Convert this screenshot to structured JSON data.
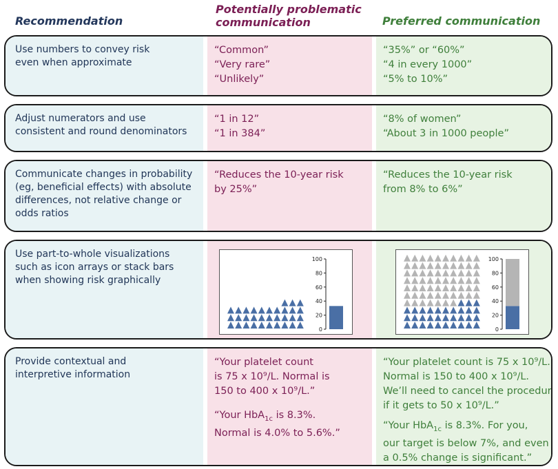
{
  "headers": {
    "recommendation": "Recommendation",
    "problematic": [
      "Potentially problematic",
      "communication"
    ],
    "preferred": "Preferred communication"
  },
  "rows": [
    {
      "recommendation": [
        "Use numbers to convey risk",
        "even when approximate"
      ],
      "problematic": [
        "“Common”",
        "“Very rare”",
        "“Unlikely”"
      ],
      "preferred": [
        "“35%” or “60%”",
        "“4 in every 1000”",
        "“5% to 10%”"
      ]
    },
    {
      "recommendation": [
        "Adjust numerators and use",
        "consistent and round denominators"
      ],
      "problematic": [
        "“1 in 12”",
        "“1 in 384”"
      ],
      "preferred": [
        "“8% of women”",
        "“About 3 in 1000 people”"
      ]
    },
    {
      "recommendation": [
        "Communicate changes in probability",
        "(eg, beneficial effects) with absolute",
        "differences, not relative change or",
        "odds ratios"
      ],
      "problematic": [
        "“Reduces the 10-year risk",
        "by 25%”"
      ],
      "preferred": [
        "“Reduces the 10-year risk",
        "from 8% to 6%”"
      ]
    },
    {
      "recommendation": [
        "Use part-to-whole visualizations",
        "such as icon arrays or stack bars",
        "when showing risk graphically"
      ]
    },
    {
      "recommendation": [
        "Provide contextual and",
        "interpretive information"
      ],
      "problematic_1": [
        "“Your platelet count",
        "is 75 x 10⁹/L. Normal is",
        "150 to 400 x 10⁹/L.”"
      ],
      "problematic_2": {
        "pre": "“Your HbA",
        "sub": "1c",
        "post": " is 8.3%.",
        "line2": "Normal is 4.0% to 5.6%.”"
      },
      "preferred_1": [
        "“Your platelet count is 75 x 10⁹/L.",
        "Normal is 150 to 400 x 10⁹/L.",
        "We’ll need to cancel the procedure",
        "if it gets to 50 x 10⁹/L.”"
      ],
      "preferred_2": {
        "pre": "“Your HbA",
        "sub": "1c",
        "post": " is 8.3%. For you,",
        "line2": "our target is below 7%, and even",
        "line3": "a 0.5% change is significant.”"
      }
    }
  ],
  "colors": {
    "recommendation_text": "#1f3456",
    "problematic_text": "#7b1f55",
    "preferred_text": "#3f7f3b",
    "icon_blue": "#4a6fa5",
    "icon_gray": "#b5b5b5"
  },
  "chart_data": [
    {
      "type": "bar",
      "name": "problematic-stack-bar",
      "ylim": [
        0,
        100
      ],
      "yticks": [
        0,
        20,
        40,
        60,
        80,
        100
      ],
      "values": [
        33
      ],
      "grid": false
    },
    {
      "type": "bar",
      "name": "preferred-stack-bar",
      "ylim": [
        0,
        100
      ],
      "yticks": [
        0,
        20,
        40,
        60,
        80,
        100
      ],
      "stacked": true,
      "values": [
        33,
        67
      ],
      "colors": [
        "#4a6fa5",
        "#b5b5b5"
      ],
      "grid": false
    }
  ],
  "icon_arrays": {
    "problematic": {
      "highlighted": 33,
      "shown_total": 33
    },
    "preferred": {
      "highlighted": 33,
      "total": 100,
      "columns": 10
    }
  }
}
